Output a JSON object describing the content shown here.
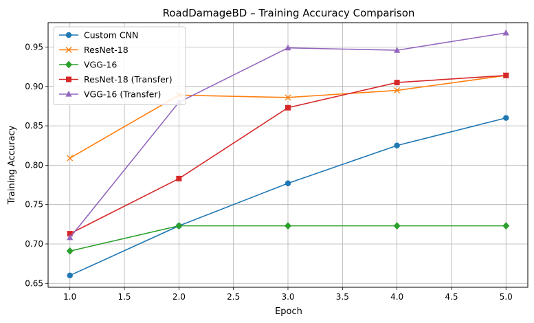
{
  "chart_data": {
    "type": "line",
    "title": "RoadDamageBD – Training Accuracy Comparison",
    "xlabel": "Epoch",
    "ylabel": "Training Accuracy",
    "xlim": [
      0.8,
      5.2
    ],
    "ylim": [
      0.645,
      0.981
    ],
    "x": [
      1,
      2,
      3,
      4,
      5
    ],
    "xticks": [
      "1.0",
      "1.5",
      "2.0",
      "2.5",
      "3.0",
      "3.5",
      "4.0",
      "4.5",
      "5.0"
    ],
    "yticks": [
      "0.65",
      "0.70",
      "0.75",
      "0.80",
      "0.85",
      "0.90",
      "0.95"
    ],
    "grid": true,
    "legend_position": "top-left",
    "series": [
      {
        "name": "Custom CNN",
        "color": "#1f77b4",
        "marker": "circle",
        "values": [
          0.66,
          0.723,
          0.777,
          0.825,
          0.86
        ]
      },
      {
        "name": "ResNet-18",
        "color": "#ff7f0e",
        "marker": "x",
        "values": [
          0.809,
          0.889,
          0.886,
          0.895,
          0.914
        ]
      },
      {
        "name": "VGG-16",
        "color": "#2ca02c",
        "marker": "diamond",
        "values": [
          0.691,
          0.723,
          0.723,
          0.723,
          0.723
        ]
      },
      {
        "name": "ResNet-18 (Transfer)",
        "color": "#d62728",
        "marker": "square",
        "values": [
          0.713,
          0.783,
          0.873,
          0.905,
          0.914
        ]
      },
      {
        "name": "VGG-16 (Transfer)",
        "color": "#9467bd",
        "marker": "triangle",
        "values": [
          0.708,
          0.88,
          0.949,
          0.946,
          0.968
        ]
      }
    ]
  }
}
